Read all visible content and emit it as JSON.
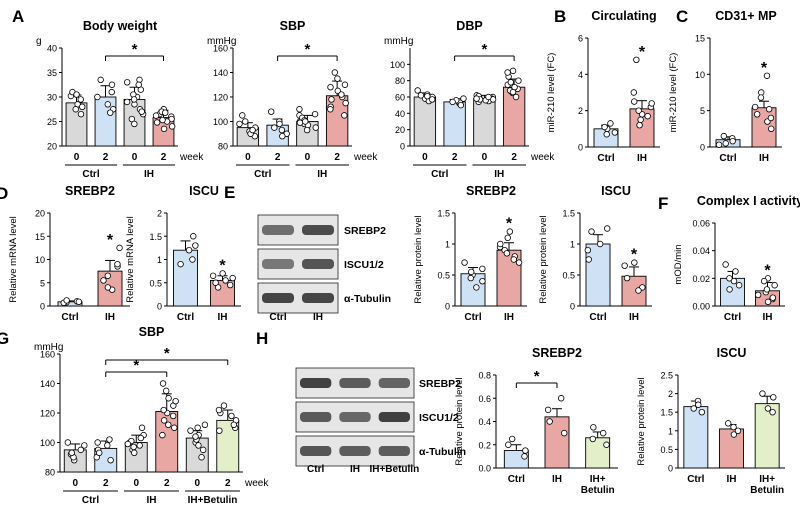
{
  "colors": {
    "gray": "#d9d9d9",
    "blue": "#cfe2f5",
    "red": "#e8a7a3",
    "green": "#e3efc8"
  },
  "chart_data": [
    {
      "letter": "A",
      "type": "bar",
      "title": "Body weight",
      "unit": "g",
      "categories": [
        "0",
        "2",
        "0",
        "2"
      ],
      "week_label": "week",
      "groups": [
        "Ctrl",
        "IH"
      ],
      "values": [
        28.8,
        30,
        29.5,
        25.8
      ],
      "errors": [
        1.6,
        2.3,
        2.5,
        1.5
      ],
      "colors": [
        "gray",
        "blue",
        "gray",
        "red"
      ],
      "ylim": [
        20,
        40
      ],
      "ticks": [
        20,
        25,
        30,
        35,
        40
      ],
      "sig": [
        {
          "from": 1,
          "to": 3,
          "label": "*"
        }
      ],
      "star_on": [],
      "points": [
        [
          30.2,
          29.5,
          28.5,
          27.5,
          31,
          28,
          26.5,
          30.5
        ],
        [
          32.5,
          31,
          30,
          28.5,
          27.5,
          33.5,
          26.8
        ],
        [
          33.5,
          31.5,
          30,
          29,
          28.5,
          27.5,
          32.5,
          33,
          30.5,
          26.5,
          27,
          29.5,
          25.5,
          24.5
        ],
        [
          27.5,
          26.5,
          26,
          25.5,
          24.8,
          25,
          26.2,
          24,
          23.5,
          27,
          26.8,
          25.3
        ]
      ]
    },
    {
      "letter": "",
      "type": "bar",
      "title": "SBP",
      "unit": "mmHg",
      "categories": [
        "0",
        "2",
        "0",
        "2"
      ],
      "week_label": "week",
      "groups": [
        "Ctrl",
        "IH"
      ],
      "values": [
        95,
        97,
        100,
        121
      ],
      "errors": [
        4,
        5,
        5,
        12
      ],
      "colors": [
        "gray",
        "blue",
        "gray",
        "red"
      ],
      "ylim": [
        80,
        160
      ],
      "ticks": [
        80,
        100,
        120,
        140,
        160
      ],
      "sig": [
        {
          "from": 1,
          "to": 3,
          "label": "*"
        }
      ],
      "star_on": [],
      "points": [
        [
          92,
          98,
          100,
          88,
          105,
          95,
          90,
          93
        ],
        [
          95,
          108,
          90,
          100,
          93,
          98,
          88
        ],
        [
          98,
          105,
          100,
          95,
          110,
          103,
          97,
          93,
          101,
          99,
          100,
          106
        ],
        [
          135,
          140,
          112,
          120,
          118,
          125,
          105,
          130,
          128,
          115,
          122,
          110
        ]
      ]
    },
    {
      "letter": "",
      "type": "bar",
      "title": "DBP",
      "unit": "mmHg",
      "categories": [
        "0",
        "2",
        "0",
        "2"
      ],
      "week_label": "week",
      "groups": [
        "Ctrl",
        "IH"
      ],
      "values": [
        60,
        54,
        58,
        72
      ],
      "errors": [
        5,
        3,
        4,
        10
      ],
      "colors": [
        "gray",
        "blue",
        "gray",
        "red"
      ],
      "ylim": [
        0,
        120
      ],
      "ticks": [
        0,
        20,
        40,
        60,
        80,
        100
      ],
      "sig": [
        {
          "from": 1,
          "to": 3,
          "label": "*"
        }
      ],
      "star_on": [],
      "points": [
        [
          63,
          58,
          60,
          55,
          68,
          62,
          57,
          61
        ],
        [
          55,
          52,
          58,
          53,
          50,
          56,
          54
        ],
        [
          60,
          58,
          55,
          62,
          57,
          56,
          54,
          60,
          59,
          61,
          57,
          58
        ],
        [
          85,
          92,
          70,
          65,
          75,
          80,
          60,
          68,
          72,
          78,
          66,
          90
        ]
      ]
    },
    {
      "letter": "B",
      "type": "bar",
      "title": "Circulating",
      "ylabel": "miR-210 level (FC)",
      "categories": [
        "Ctrl",
        "IH"
      ],
      "values": [
        1,
        2.1
      ],
      "errors": [
        0.2,
        0.45
      ],
      "colors": [
        "blue",
        "red"
      ],
      "ylim": [
        0,
        6
      ],
      "ticks": [
        0,
        2,
        4,
        6
      ],
      "sig": [],
      "star_on": [
        1
      ],
      "points": [
        [
          1.0,
          0.8,
          1.3,
          0.7,
          1.1
        ],
        [
          2.5,
          1.8,
          1.5,
          3.0,
          2.0,
          1.2,
          4.8,
          2.2,
          1.7,
          2.4
        ]
      ]
    },
    {
      "letter": "C",
      "type": "bar",
      "title": "CD31+ MP",
      "ylabel": "miR-210 level (FC)",
      "categories": [
        "Ctrl",
        "IH"
      ],
      "values": [
        1,
        5.4
      ],
      "errors": [
        0.4,
        0.9
      ],
      "colors": [
        "blue",
        "red"
      ],
      "ylim": [
        0,
        15
      ],
      "ticks": [
        0,
        5,
        10,
        15
      ],
      "sig": [],
      "star_on": [
        1
      ],
      "points": [
        [
          1.2,
          0.5,
          0.8,
          1.5,
          0.3
        ],
        [
          5.5,
          7.5,
          3.5,
          4.5,
          9.8,
          5.2,
          2.5,
          6.8,
          4.0
        ]
      ]
    },
    {
      "letter": "D",
      "type": "bar",
      "title": "SREBP2",
      "ylabel": "Relative mRNA level",
      "categories": [
        "Ctrl",
        "IH"
      ],
      "values": [
        0.9,
        7.5
      ],
      "errors": [
        0.2,
        2.3
      ],
      "colors": [
        "blue",
        "red"
      ],
      "ylim": [
        0,
        20
      ],
      "ticks": [
        0,
        5,
        10,
        15,
        20
      ],
      "sig": [],
      "star_on": [
        1
      ],
      "points": [
        [
          0.8,
          1.0,
          0.7,
          1.2,
          0.9
        ],
        [
          5.5,
          12.5,
          8.5,
          3.5,
          6.5,
          4.0,
          9.0
        ]
      ]
    },
    {
      "letter": "",
      "type": "bar",
      "title": "ISCU",
      "ylabel": "Relative mRNA level",
      "categories": [
        "Ctrl",
        "IH"
      ],
      "values": [
        1.2,
        0.55
      ],
      "errors": [
        0.2,
        0.1
      ],
      "colors": [
        "blue",
        "red"
      ],
      "ylim": [
        0,
        2
      ],
      "ticks": [
        0,
        0.5,
        1.0,
        1.5,
        2.0
      ],
      "sig": [],
      "star_on": [
        1
      ],
      "points": [
        [
          1.5,
          1.2,
          1.0,
          0.9,
          1.3
        ],
        [
          0.6,
          0.4,
          0.7,
          0.5,
          0.45,
          0.65,
          0.55
        ]
      ]
    },
    {
      "letter": "",
      "type": "bar",
      "title": "SREBP2",
      "ylabel": "Relative protein level",
      "categories": [
        "Ctrl",
        "IH"
      ],
      "values": [
        0.52,
        0.9
      ],
      "errors": [
        0.1,
        0.12
      ],
      "colors": [
        "blue",
        "red"
      ],
      "ylim": [
        0,
        1.5
      ],
      "ticks": [
        0,
        0.5,
        1.0,
        1.5
      ],
      "sig": [],
      "star_on": [
        1
      ],
      "points": [
        [
          0.6,
          0.4,
          0.5,
          0.7,
          0.3,
          0.55,
          0.45
        ],
        [
          0.9,
          1.1,
          0.8,
          0.7,
          1.2,
          0.85,
          0.95,
          0.75,
          1.0
        ]
      ]
    },
    {
      "letter": "",
      "type": "bar",
      "title": "ISCU",
      "ylabel": "Relative protein level",
      "categories": [
        "Ctrl",
        "IH"
      ],
      "values": [
        1.0,
        0.48
      ],
      "errors": [
        0.15,
        0.15
      ],
      "colors": [
        "blue",
        "red"
      ],
      "ylim": [
        0,
        1.5
      ],
      "ticks": [
        0,
        0.5,
        1.0,
        1.5
      ],
      "sig": [],
      "star_on": [
        1
      ],
      "points": [
        [
          1.25,
          1.0,
          0.9,
          0.75,
          1.2
        ],
        [
          0.65,
          0.3,
          0.45,
          0.7,
          0.25
        ]
      ]
    },
    {
      "letter": "F",
      "type": "bar",
      "title": "Complex I activity",
      "ylabel": "mOD/min",
      "categories": [
        "Ctrl",
        "IH"
      ],
      "values": [
        0.02,
        0.011
      ],
      "errors": [
        0.005,
        0.006
      ],
      "colors": [
        "blue",
        "red"
      ],
      "ylim": [
        0,
        0.06
      ],
      "ticks": [
        0,
        0.02,
        0.04,
        0.06
      ],
      "tick_labels": [
        "0.00",
        "0.02",
        "0.04",
        "0.06"
      ],
      "sig": [],
      "star_on": [
        1
      ],
      "points": [
        [
          0.025,
          0.02,
          0.015,
          0.03,
          0.018,
          0.012
        ],
        [
          0.02,
          0.01,
          0.005,
          0.015,
          0.008,
          0.012,
          0.006,
          0.003,
          0.018
        ]
      ]
    },
    {
      "letter": "G",
      "type": "bar",
      "title": "SBP",
      "unit": "mmHg",
      "categories": [
        "0",
        "2",
        "0",
        "2",
        "0",
        "2"
      ],
      "week_label": "week",
      "groups": [
        "Ctrl",
        "IH",
        "IH+Betulin"
      ],
      "values": [
        95,
        96,
        100,
        121,
        103,
        115
      ],
      "errors": [
        4,
        5,
        5,
        12,
        5,
        7
      ],
      "colors": [
        "gray",
        "blue",
        "gray",
        "red",
        "gray",
        "green"
      ],
      "ylim": [
        80,
        160
      ],
      "ticks": [
        80,
        100,
        120,
        140,
        160
      ],
      "sig": [
        {
          "from": 1,
          "to": 3,
          "label": "*"
        },
        {
          "from": 1,
          "to": 5,
          "label": "*"
        }
      ],
      "star_on": [],
      "points": [
        [
          92,
          98,
          100,
          88,
          95,
          90,
          93
        ],
        [
          95,
          100,
          90,
          98,
          93,
          88,
          102
        ],
        [
          98,
          105,
          100,
          95,
          110,
          103,
          97,
          93,
          101,
          99
        ],
        [
          135,
          140,
          112,
          120,
          118,
          125,
          105,
          130,
          128,
          115,
          122,
          110
        ],
        [
          100,
          108,
          95,
          110,
          98,
          105,
          102,
          90,
          112,
          104
        ],
        [
          110,
          120,
          115,
          125,
          108,
          118,
          112,
          122
        ]
      ]
    },
    {
      "letter": "",
      "type": "bar",
      "title": "SREBP2",
      "ylabel": "Relative protein level",
      "categories": [
        "Ctrl",
        "IH",
        "IH+|Betulin"
      ],
      "values": [
        0.15,
        0.44,
        0.26
      ],
      "errors": [
        0.05,
        0.07,
        0.05
      ],
      "colors": [
        "blue",
        "red",
        "green"
      ],
      "ylim": [
        0,
        0.8
      ],
      "ticks": [
        0,
        0.2,
        0.4,
        0.6,
        0.8
      ],
      "tick_labels": [
        "0.0",
        "0.2",
        "0.4",
        "0.6",
        "0.8"
      ],
      "sig": [
        {
          "from": 0,
          "to": 1,
          "label": "*"
        }
      ],
      "star_on": [],
      "points": [
        [
          0.1,
          0.2,
          0.15,
          0.25
        ],
        [
          0.6,
          0.4,
          0.5,
          0.3
        ],
        [
          0.2,
          0.3,
          0.35,
          0.25
        ]
      ]
    },
    {
      "letter": "",
      "type": "bar",
      "title": "ISCU",
      "ylabel": "Relative protein level",
      "categories": [
        "Ctrl",
        "IH",
        "IH+|Betulin"
      ],
      "values": [
        1.65,
        1.05,
        1.73
      ],
      "errors": [
        0.15,
        0.12,
        0.2
      ],
      "colors": [
        "blue",
        "red",
        "green"
      ],
      "ylim": [
        0,
        2.5
      ],
      "ticks": [
        0,
        0.5,
        1.0,
        1.5,
        2.0,
        2.5
      ],
      "sig": [],
      "star_on": [],
      "points": [
        [
          1.8,
          1.5,
          1.7,
          1.6
        ],
        [
          1.2,
          0.9,
          1.1,
          1.0
        ],
        [
          2.0,
          1.6,
          1.5,
          1.9
        ]
      ]
    }
  ],
  "blots": [
    {
      "letter": "E",
      "bands": [
        "SREBP2",
        "ISCU1/2",
        "α-Tubulin"
      ],
      "lanes": [
        "Ctrl",
        "IH"
      ]
    },
    {
      "letter": "H",
      "bands": [
        "SREBP2",
        "ISCU1/2",
        "α-Tubulin"
      ],
      "lanes": [
        "Ctrl",
        "IH",
        "IH+Betulin"
      ]
    }
  ]
}
